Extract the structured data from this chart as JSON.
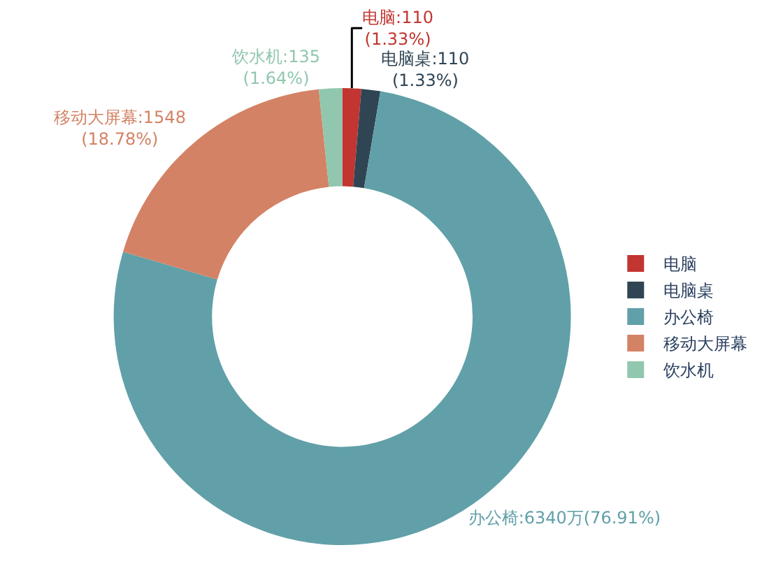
{
  "chart_data": {
    "type": "donut",
    "categories": [
      "电脑",
      "电脑桌",
      "办公椅",
      "移动大屏幕",
      "饮水机"
    ],
    "values": [
      110,
      110,
      6340,
      1548,
      135
    ],
    "colors": [
      "#c23531",
      "#2f4554",
      "#61a0a8",
      "#d48265",
      "#91c7ae"
    ],
    "value_labels": [
      ":110\n(1.33%)",
      ":110\n(1.33%)",
      ":6340万(76.91%)",
      ":1548\n(18.78%)",
      ":135\n(1.64%)"
    ],
    "legend": "right"
  }
}
